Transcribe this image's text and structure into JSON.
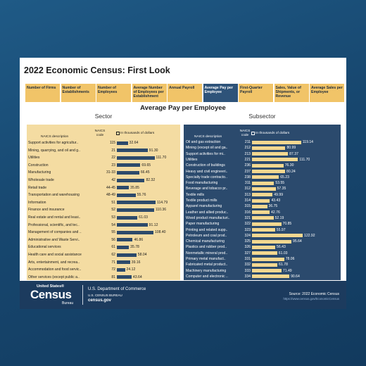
{
  "header": {
    "title": "2022 Economic Census: First Look"
  },
  "tabs": [
    "Number of Firms",
    "Number of Establishments",
    "Number of Employees",
    "Average Number of Employees per Establishment",
    "Annual Payroll",
    "Average Pay per Employee",
    "First-Quarter Payroll",
    "Sales, Value of Shipments, or Revenue",
    "Average Sales per Employee"
  ],
  "active_tab": 5,
  "page_heading": "Average Pay per Employee",
  "footer": {
    "logo_top": "United States®",
    "logo_main": "Census",
    "logo_bottom": "Bureau",
    "department": "U.S. Department of Commerce",
    "agency": "U.S. CENSUS BUREAU",
    "website": "census.gov",
    "source": "Source: 2022 Economic Census",
    "source_url": "https://www.census.gov/EconomicCensus"
  },
  "chart_data": [
    {
      "type": "bar",
      "title": "Sector",
      "description_label": "NAICS description",
      "code_label": "NAICS code",
      "unit_label": "In thousands of dollars",
      "background": "#f4dca2",
      "text_color": "#1b1b1b",
      "color": "#2d4a6b",
      "categories": [
        "Support activities for agricultur..",
        "Mining, quarrying, and oil and g..",
        "Utilities",
        "Construction",
        "Manufacturing",
        "Wholesale trade",
        "Retail trade",
        "Transportation and warehousing",
        "Information",
        "Finance and insurance",
        "Real estate and rental and leasi..",
        "Professional, scientific, and tec..",
        "Management of companies and ..",
        "Administrative and Waste Servi..",
        "Educational services",
        "Health care and social assistance",
        "Arts, entertainment, and recrea..",
        "Accommodation and food servic..",
        "Other services (except public a.."
      ],
      "codes": [
        "115",
        "21",
        "22",
        "23",
        "31-33",
        "42",
        "44-45",
        "48-49",
        "51",
        "52",
        "53",
        "54",
        "55",
        "56",
        "61",
        "62",
        "71",
        "72",
        "81"
      ],
      "values": [
        32.64,
        91.3,
        111.7,
        69.65,
        66.45,
        82.32,
        35.85,
        55.76,
        114.79,
        110.36,
        61.03,
        91.12,
        108.4,
        46.86,
        35.78,
        58.04,
        39.16,
        24.12,
        43.64
      ],
      "value_labels": [
        "32.64",
        "91.30",
        "111.70",
        "69.65",
        "66.45",
        "82.32",
        "35.85",
        "55.76",
        "114.79",
        "110.36",
        "61.03",
        "91.12",
        "108.40",
        "46.86",
        "35.78",
        "58.04",
        "39.16",
        "24.12",
        "43.64"
      ]
    },
    {
      "type": "bar",
      "title": "Subsector",
      "description_label": "NAICS description",
      "code_label": "NAICS code",
      "unit_label": "In thousands of dollars",
      "background": "#2b4a6d",
      "text_color": "#ffffff",
      "color": "#f4d890",
      "categories": [
        "Oil and gas extraction",
        "Mining (except oil and ga..",
        "Support activities for mi..",
        "Utilities",
        "Construction of buildings",
        "Heavy and civil engineeri..",
        "Specialty trade contracto..",
        "Food manufacturing",
        "Beverage and tobacco pr..",
        "Textile mills",
        "Textile product mills",
        "Apparel manufacturing",
        "Leather and allied produc..",
        "Wood product manufacturi..",
        "Paper manufacturing",
        "Printing and related supp..",
        "Petroleum and coal prod..",
        "Chemical manufacturing",
        "Plastics and rubber prod..",
        "Nonmetallic mineral prod..",
        "Primary metal manufact..",
        "Fabricated metal product..",
        "Machinery manufacturing",
        "Computer and electronic .."
      ],
      "codes": [
        "211",
        "212",
        "213",
        "221",
        "236",
        "237",
        "238",
        "311",
        "312",
        "313",
        "314",
        "315",
        "316",
        "321",
        "322",
        "323",
        "324",
        "325",
        "326",
        "327",
        "331",
        "332",
        "333",
        "334"
      ],
      "values": [
        119.14,
        80.99,
        87.37,
        111.7,
        76.3,
        80.24,
        65.23,
        53.55,
        57.35,
        49.99,
        43.43,
        36.75,
        42.76,
        52.19,
        70.85,
        55.97,
        122.92,
        95.64,
        56.43,
        61.03,
        78.06,
        61.78,
        71.49,
        90.64
      ],
      "value_labels": [
        "119.14",
        "80.99",
        "87.37",
        "111.70",
        "76.30",
        "80.24",
        "65.23",
        "53.55",
        "57.35",
        "49.99",
        "43.43",
        "36.75",
        "42.76",
        "52.19",
        "70.85",
        "55.97",
        "122.92",
        "95.64",
        "56.43",
        "61.03",
        "78.06",
        "61.78",
        "71.49",
        "90.64"
      ]
    }
  ]
}
